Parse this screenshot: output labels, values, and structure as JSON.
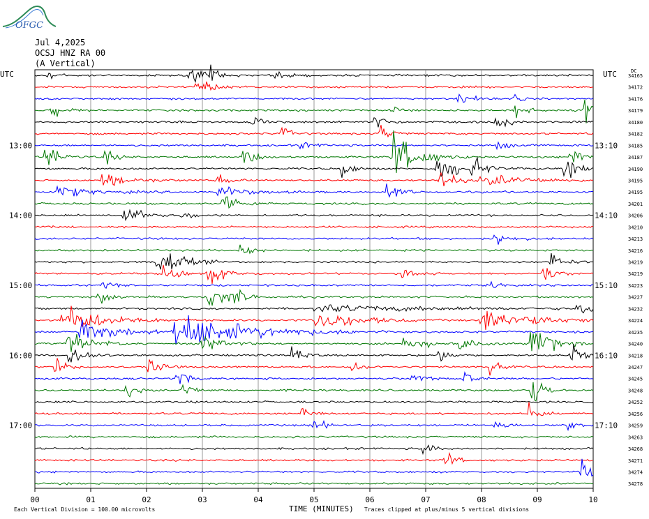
{
  "header": {
    "logo_text": "OFGC",
    "date": "Jul 4,2025",
    "station": "OCSJ HNZ RA 00",
    "component": "(A Vertical)",
    "utc_left": "UTC",
    "utc_right": "UTC",
    "dc_label": "DC"
  },
  "colors": {
    "trace_cycle": [
      "#000000",
      "#ff0000",
      "#0000ff",
      "#007700"
    ],
    "grid": "#808080",
    "background": "#ffffff"
  },
  "chart_data": {
    "type": "line",
    "subtype": "helicorder",
    "xlabel": "TIME (MINUTES)",
    "xlim": [
      0,
      10
    ],
    "x_tick_labels": [
      "00",
      "01",
      "02",
      "03",
      "04",
      "05",
      "06",
      "07",
      "08",
      "09",
      "10"
    ],
    "left_time_labels": [
      "13:00",
      "14:00",
      "15:00",
      "16:00",
      "17:00"
    ],
    "right_time_labels": [
      "13:10",
      "14:10",
      "15:10",
      "16:10",
      "17:10"
    ],
    "time_label_rows": [
      6,
      12,
      18,
      24,
      30
    ],
    "dc_offsets": [
      34165,
      34172,
      34176,
      34179,
      34180,
      34182,
      34185,
      34187,
      34190,
      34195,
      34195,
      34201,
      34206,
      34210,
      34213,
      34216,
      34219,
      34219,
      34223,
      34227,
      34232,
      34224,
      34235,
      34240,
      34218,
      34247,
      34245,
      34248,
      34252,
      34256,
      34259,
      34263,
      34268,
      34271,
      34274,
      34278
    ],
    "vertical_division_note": "Each Vertical Division =  100.00 microvolts",
    "clip_note": "Traces clipped at plus/minus 5 vertical divisions",
    "trace_rows": 36,
    "events": [
      {
        "row": 0,
        "minute": 0.2,
        "amp": 8,
        "dur": 0.3
      },
      {
        "row": 0,
        "minute": 2.78,
        "amp": 10,
        "dur": 0.35
      },
      {
        "row": 0,
        "minute": 3.15,
        "amp": 8,
        "dur": 0.3
      },
      {
        "row": 0,
        "minute": 4.3,
        "amp": 5,
        "dur": 0.4
      },
      {
        "row": 1,
        "minute": 2.9,
        "amp": 10,
        "dur": 0.45
      },
      {
        "row": 2,
        "minute": 7.6,
        "amp": 7,
        "dur": 0.35
      },
      {
        "row": 2,
        "minute": 8.6,
        "amp": 4,
        "dur": 0.2
      },
      {
        "row": 3,
        "minute": 0.3,
        "amp": 8,
        "dur": 0.35
      },
      {
        "row": 3,
        "minute": 8.6,
        "amp": 10,
        "dur": 0.3
      },
      {
        "row": 3,
        "minute": 9.85,
        "amp": 14,
        "dur": 0.25
      },
      {
        "row": 3,
        "minute": 6.4,
        "amp": 14,
        "dur": 0.2
      },
      {
        "row": 4,
        "minute": 3.9,
        "amp": 8,
        "dur": 0.25
      },
      {
        "row": 4,
        "minute": 6.1,
        "amp": 8,
        "dur": 0.3
      },
      {
        "row": 4,
        "minute": 8.25,
        "amp": 12,
        "dur": 0.3
      },
      {
        "row": 5,
        "minute": 4.4,
        "amp": 10,
        "dur": 0.25
      },
      {
        "row": 5,
        "minute": 6.2,
        "amp": 10,
        "dur": 0.3
      },
      {
        "row": 6,
        "minute": 8.3,
        "amp": 6,
        "dur": 0.25
      },
      {
        "row": 6,
        "minute": 4.7,
        "amp": 3,
        "dur": 0.6
      },
      {
        "row": 7,
        "minute": 0.2,
        "amp": 14,
        "dur": 0.4
      },
      {
        "row": 7,
        "minute": 1.25,
        "amp": 10,
        "dur": 0.25
      },
      {
        "row": 7,
        "minute": 3.75,
        "amp": 12,
        "dur": 0.3
      },
      {
        "row": 7,
        "minute": 6.4,
        "amp": 30,
        "dur": 0.7
      },
      {
        "row": 7,
        "minute": 9.6,
        "amp": 14,
        "dur": 0.3
      },
      {
        "row": 8,
        "minute": 5.5,
        "amp": 10,
        "dur": 0.3
      },
      {
        "row": 8,
        "minute": 7.2,
        "amp": 14,
        "dur": 0.8
      },
      {
        "row": 8,
        "minute": 7.85,
        "amp": 12,
        "dur": 0.3
      },
      {
        "row": 8,
        "minute": 9.5,
        "amp": 10,
        "dur": 0.5
      },
      {
        "row": 9,
        "minute": 1.2,
        "amp": 8,
        "dur": 0.8
      },
      {
        "row": 9,
        "minute": 3.3,
        "amp": 6,
        "dur": 0.3
      },
      {
        "row": 9,
        "minute": 7.25,
        "amp": 10,
        "dur": 0.5
      },
      {
        "row": 9,
        "minute": 8.0,
        "amp": 6,
        "dur": 1.5
      },
      {
        "row": 10,
        "minute": 0.4,
        "amp": 6,
        "dur": 1.0
      },
      {
        "row": 10,
        "minute": 3.3,
        "amp": 7,
        "dur": 0.8
      },
      {
        "row": 10,
        "minute": 6.3,
        "amp": 12,
        "dur": 0.35
      },
      {
        "row": 11,
        "minute": 3.35,
        "amp": 14,
        "dur": 0.45
      },
      {
        "row": 12,
        "minute": 1.6,
        "amp": 14,
        "dur": 0.4
      },
      {
        "row": 12,
        "minute": 2.6,
        "amp": 5,
        "dur": 0.4
      },
      {
        "row": 14,
        "minute": 8.25,
        "amp": 10,
        "dur": 0.35
      },
      {
        "row": 15,
        "minute": 3.7,
        "amp": 12,
        "dur": 0.25
      },
      {
        "row": 16,
        "minute": 2.2,
        "amp": 22,
        "dur": 0.6
      },
      {
        "row": 16,
        "minute": 9.25,
        "amp": 10,
        "dur": 0.35
      },
      {
        "row": 17,
        "minute": 2.3,
        "amp": 12,
        "dur": 0.4
      },
      {
        "row": 17,
        "minute": 3.1,
        "amp": 12,
        "dur": 0.5
      },
      {
        "row": 17,
        "minute": 6.6,
        "amp": 10,
        "dur": 0.35
      },
      {
        "row": 17,
        "minute": 9.1,
        "amp": 10,
        "dur": 0.35
      },
      {
        "row": 18,
        "minute": 1.2,
        "amp": 6,
        "dur": 0.3
      },
      {
        "row": 18,
        "minute": 8.2,
        "amp": 5,
        "dur": 0.2
      },
      {
        "row": 19,
        "minute": 1.15,
        "amp": 10,
        "dur": 0.25
      },
      {
        "row": 19,
        "minute": 3.1,
        "amp": 14,
        "dur": 0.6
      },
      {
        "row": 19,
        "minute": 3.6,
        "amp": 8,
        "dur": 0.3
      },
      {
        "row": 20,
        "minute": 5.0,
        "amp": 4,
        "dur": 3.5
      },
      {
        "row": 20,
        "minute": 9.7,
        "amp": 6,
        "dur": 0.6
      },
      {
        "row": 21,
        "minute": 0.5,
        "amp": 16,
        "dur": 1.2
      },
      {
        "row": 21,
        "minute": 5.0,
        "amp": 12,
        "dur": 1.2
      },
      {
        "row": 21,
        "minute": 8.0,
        "amp": 12,
        "dur": 1.6
      },
      {
        "row": 22,
        "minute": 0.8,
        "amp": 16,
        "dur": 1.0
      },
      {
        "row": 22,
        "minute": 2.5,
        "amp": 20,
        "dur": 2.2
      },
      {
        "row": 23,
        "minute": 0.6,
        "amp": 12,
        "dur": 0.7
      },
      {
        "row": 23,
        "minute": 3.0,
        "amp": 8,
        "dur": 0.6
      },
      {
        "row": 23,
        "minute": 6.6,
        "amp": 10,
        "dur": 0.6
      },
      {
        "row": 23,
        "minute": 7.6,
        "amp": 8,
        "dur": 0.5
      },
      {
        "row": 23,
        "minute": 8.9,
        "amp": 30,
        "dur": 0.5
      },
      {
        "row": 24,
        "minute": 0.6,
        "amp": 18,
        "dur": 0.4
      },
      {
        "row": 24,
        "minute": 4.6,
        "amp": 10,
        "dur": 0.3
      },
      {
        "row": 24,
        "minute": 7.25,
        "amp": 12,
        "dur": 0.25
      },
      {
        "row": 24,
        "minute": 9.6,
        "amp": 12,
        "dur": 0.35
      },
      {
        "row": 25,
        "minute": 0.35,
        "amp": 10,
        "dur": 0.3
      },
      {
        "row": 25,
        "minute": 2.05,
        "amp": 12,
        "dur": 0.3
      },
      {
        "row": 25,
        "minute": 5.7,
        "amp": 10,
        "dur": 0.25
      },
      {
        "row": 25,
        "minute": 8.15,
        "amp": 8,
        "dur": 0.3
      },
      {
        "row": 26,
        "minute": 2.55,
        "amp": 10,
        "dur": 0.3
      },
      {
        "row": 26,
        "minute": 6.75,
        "amp": 10,
        "dur": 0.3
      },
      {
        "row": 26,
        "minute": 7.7,
        "amp": 8,
        "dur": 0.3
      },
      {
        "row": 27,
        "minute": 1.6,
        "amp": 10,
        "dur": 0.3
      },
      {
        "row": 27,
        "minute": 2.65,
        "amp": 10,
        "dur": 0.3
      },
      {
        "row": 27,
        "minute": 8.9,
        "amp": 26,
        "dur": 0.3
      },
      {
        "row": 29,
        "minute": 4.8,
        "amp": 12,
        "dur": 0.25
      },
      {
        "row": 29,
        "minute": 8.85,
        "amp": 12,
        "dur": 0.25
      },
      {
        "row": 30,
        "minute": 5.0,
        "amp": 8,
        "dur": 0.3
      },
      {
        "row": 30,
        "minute": 8.25,
        "amp": 6,
        "dur": 0.3
      },
      {
        "row": 30,
        "minute": 9.55,
        "amp": 8,
        "dur": 0.3
      },
      {
        "row": 32,
        "minute": 6.95,
        "amp": 10,
        "dur": 0.25
      },
      {
        "row": 33,
        "minute": 7.35,
        "amp": 10,
        "dur": 0.3
      },
      {
        "row": 34,
        "minute": 9.8,
        "amp": 16,
        "dur": 0.3
      }
    ]
  }
}
